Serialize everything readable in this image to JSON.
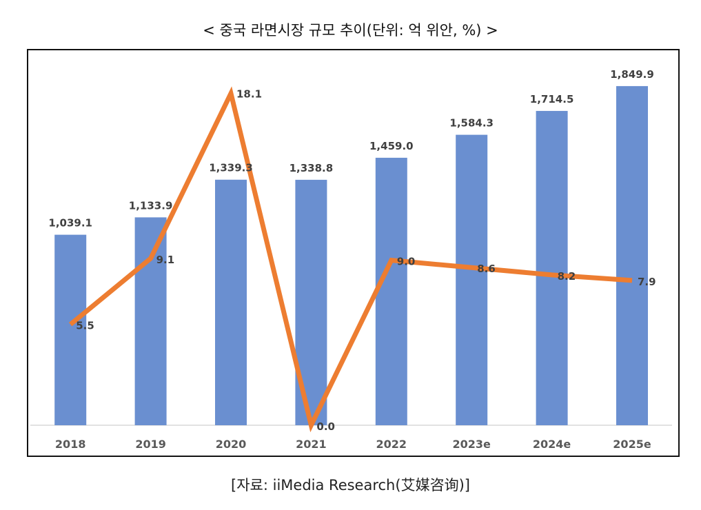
{
  "chart_data": {
    "type": "bar+line",
    "title": "< 중국 라면시장 규모 추이(단위: 억 위안, %) >",
    "source": "[자료: iiMedia Research(艾媒咨询)]",
    "categories": [
      "2018",
      "2019",
      "2020",
      "2021",
      "2022",
      "2023e",
      "2024e",
      "2025e"
    ],
    "series": [
      {
        "type": "bar",
        "axis": "primary",
        "values": [
          1039.1,
          1133.9,
          1339.3,
          1338.8,
          1459.0,
          1584.3,
          1714.5,
          1849.9
        ],
        "labels": [
          "1,039.1",
          "1,133.9",
          "1,339.3",
          "1,338.8",
          "1,459.0",
          "1,584.3",
          "1,714.5",
          "1,849.9"
        ],
        "color": "#6A8FD0"
      },
      {
        "type": "line",
        "axis": "secondary",
        "values": [
          5.5,
          9.1,
          18.1,
          0.0,
          9.0,
          8.6,
          8.2,
          7.9
        ],
        "labels": [
          "5.5",
          "9.1",
          "18.1",
          "0.0",
          "9.0",
          "8.6",
          "8.2",
          "7.9"
        ],
        "color": "#ED7D31"
      }
    ],
    "ylim": [
      0,
      2000
    ],
    "y2lim": [
      0,
      20
    ],
    "grid": false,
    "legend": "none"
  }
}
